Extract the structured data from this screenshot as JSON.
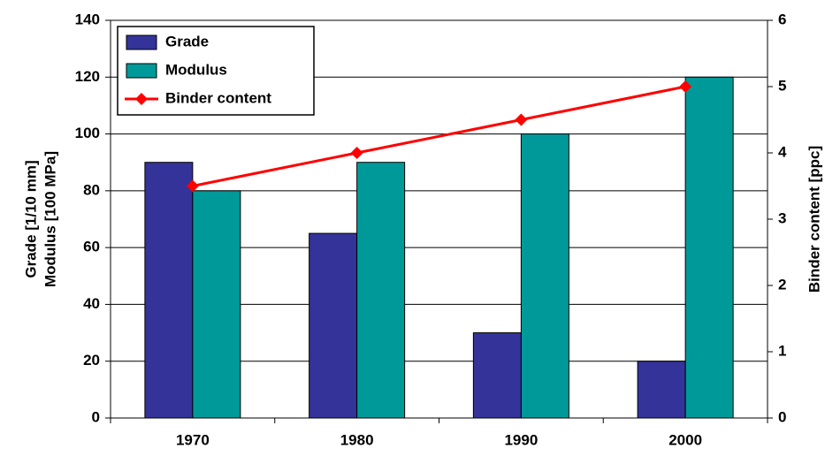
{
  "chart_data": {
    "type": "bar",
    "categories": [
      "1970",
      "1980",
      "1990",
      "2000"
    ],
    "series": [
      {
        "name": "Grade",
        "color": "#333399",
        "values": [
          90,
          65,
          30,
          20
        ]
      },
      {
        "name": "Modulus",
        "color": "#009999",
        "values": [
          80,
          90,
          100,
          120
        ]
      },
      {
        "name": "Binder content",
        "color": "#ff0000",
        "type": "line",
        "axis": "y2",
        "values": [
          3.5,
          4,
          4.5,
          5
        ]
      }
    ],
    "ylabel": [
      "Grade [1/10 mm]",
      "Modulus [100 MPa]"
    ],
    "y2label": "Binder content [ppc]",
    "ylim": [
      0,
      140
    ],
    "yticks": [
      0,
      20,
      40,
      60,
      80,
      100,
      120,
      140
    ],
    "y2lim": [
      0,
      6
    ],
    "y2ticks": [
      0,
      1,
      2,
      3,
      4,
      5,
      6
    ],
    "grid": true,
    "legend": "upper left"
  }
}
